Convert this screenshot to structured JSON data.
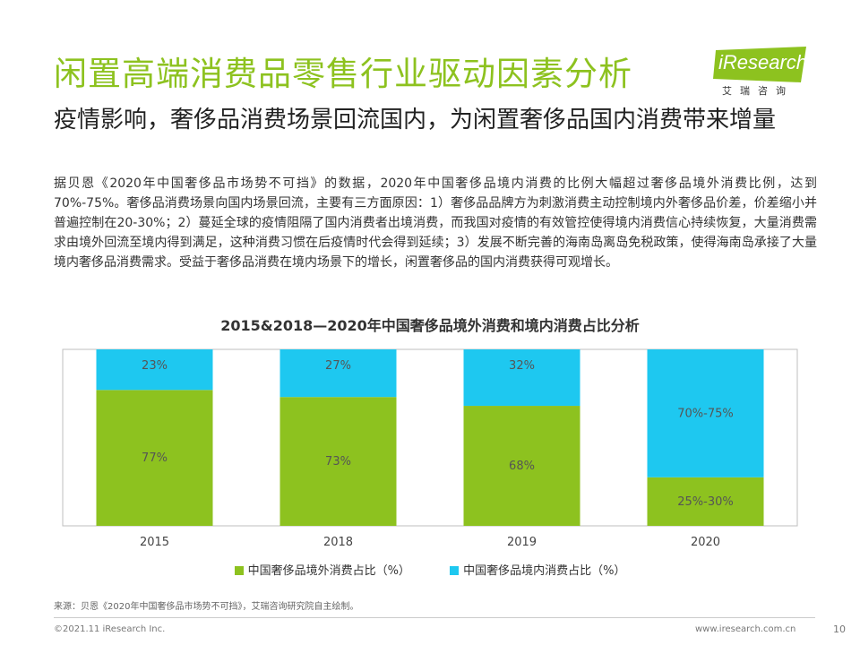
{
  "header": {
    "title": "闲置高端消费品零售行业驱动因素分析",
    "logo_text": "iResearch",
    "logo_sub": "艾瑞咨询"
  },
  "subtitle": "疫情影响，奢侈品消费场景回流国内，为闲置奢侈品国内消费带来增量",
  "body_text": "据贝恩《2020年中国奢侈品市场势不可挡》的数据，2020年中国奢侈品境内消费的比例大幅超过奢侈品境外消费比例，达到70%-75%。奢侈品消费场景向国内场景回流，主要有三方面原因：1）奢侈品品牌方为刺激消费主动控制境内外奢侈品价差，价差缩小并普遍控制在20-30%；2）蔓延全球的疫情阻隔了国内消费者出境消费，而我国对疫情的有效管控使得境内消费信心持续恢复，大量消费需求由境外回流至境内得到满足，这种消费习惯在后疫情时代会得到延续；3）发展不断完善的海南岛离岛免税政策，使得海南岛承接了大量境内奢侈品消费需求。受益于奢侈品消费在境内场景下的增长，闲置奢侈品的国内消费获得可观增长。",
  "chart_data": {
    "type": "bar",
    "stacked": true,
    "percent": true,
    "title": "2015&2018—2020年中国奢侈品境外消费和境内消费占比分析",
    "categories": [
      "2015",
      "2018",
      "2019",
      "2020"
    ],
    "series": [
      {
        "name": "中国奢侈品境外消费占比（%）",
        "color": "#8dc21f",
        "values": [
          77,
          73,
          68,
          27.5
        ],
        "labels": [
          "77%",
          "73%",
          "68%",
          "25%-30%"
        ]
      },
      {
        "name": "中国奢侈品境内消费占比（%）",
        "color": "#1ec8f0",
        "values": [
          23,
          27,
          32,
          72.5
        ],
        "labels": [
          "23%",
          "27%",
          "32%",
          "70%-75%"
        ]
      }
    ],
    "ylim": [
      0,
      100
    ],
    "grid": true,
    "legend": "bottom"
  },
  "source": "来源：贝恩《2020年中国奢侈品市场势不可挡》，艾瑞咨询研究院自主绘制。",
  "footer": {
    "copyright": "©2021.11 iResearch Inc.",
    "website": "www.iresearch.com.cn",
    "page": "10"
  }
}
